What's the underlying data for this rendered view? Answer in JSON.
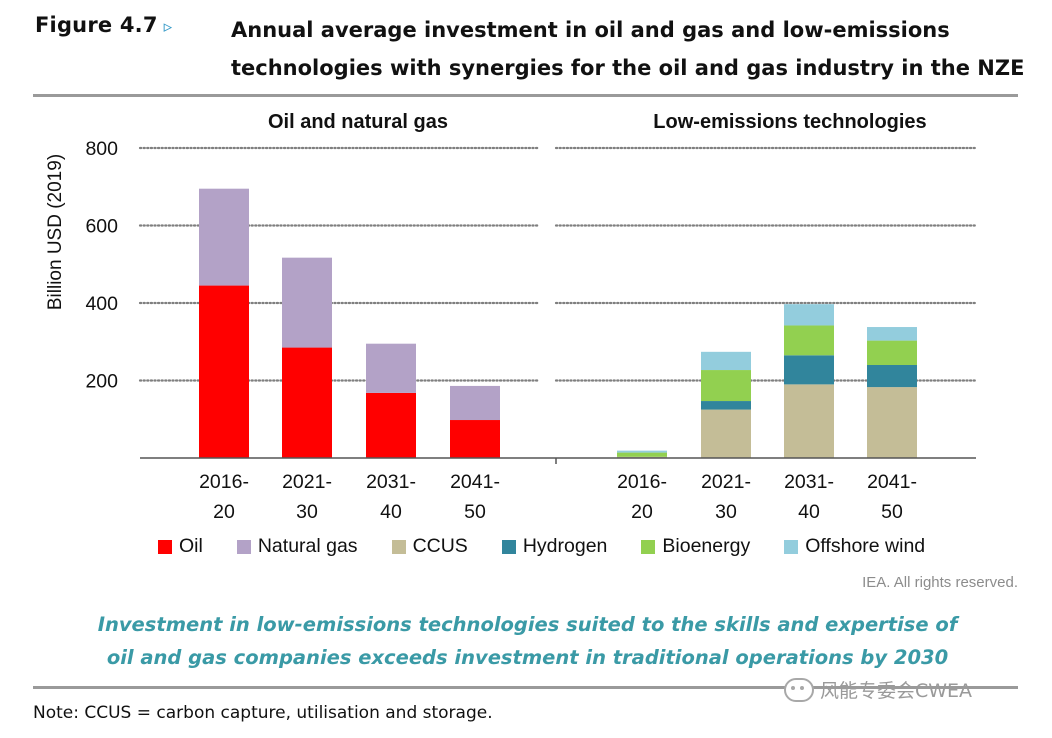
{
  "figure": {
    "label": "Figure 4.7",
    "arrow": "▹",
    "title_line1": "Annual average investment in oil and gas and low-emissions",
    "title_line2": "technologies with synergies for the oil and gas industry in the NZE"
  },
  "chart_data": [
    {
      "type": "bar",
      "stacked": true,
      "title": "Oil and natural gas",
      "ylabel": "Billion USD (2019)",
      "ylim": [
        0,
        800
      ],
      "yticks": [
        200,
        400,
        600,
        800
      ],
      "grid": true,
      "categories": [
        [
          "2016-",
          "20"
        ],
        [
          "2021-",
          "30"
        ],
        [
          "2031-",
          "40"
        ],
        [
          "2041-",
          "50"
        ]
      ],
      "series": [
        {
          "name": "Oil",
          "color": "#ff0000",
          "values": [
            445,
            285,
            168,
            98
          ]
        },
        {
          "name": "Natural gas",
          "color": "#b3a2c7",
          "values": [
            250,
            232,
            127,
            88
          ]
        }
      ]
    },
    {
      "type": "bar",
      "stacked": true,
      "title": "Low-emissions technologies",
      "ylim": [
        0,
        800
      ],
      "yticks": [
        200,
        400,
        600,
        800
      ],
      "grid": true,
      "categories": [
        [
          "2016-",
          "20"
        ],
        [
          "2021-",
          "30"
        ],
        [
          "2031-",
          "40"
        ],
        [
          "2041-",
          "50"
        ]
      ],
      "series": [
        {
          "name": "CCUS",
          "color": "#c4bd97",
          "values": [
            3,
            125,
            190,
            183
          ]
        },
        {
          "name": "Hydrogen",
          "color": "#31859c",
          "values": [
            0,
            22,
            75,
            57
          ]
        },
        {
          "name": "Bioenergy",
          "color": "#92d050",
          "values": [
            11,
            80,
            77,
            63
          ]
        },
        {
          "name": "Offshore wind",
          "color": "#93cddd",
          "values": [
            5,
            47,
            55,
            35
          ]
        }
      ]
    }
  ],
  "legend": [
    {
      "label": "Oil",
      "color": "#ff0000"
    },
    {
      "label": "Natural gas",
      "color": "#b3a2c7"
    },
    {
      "label": "CCUS",
      "color": "#c4bd97"
    },
    {
      "label": "Hydrogen",
      "color": "#31859c"
    },
    {
      "label": "Bioenergy",
      "color": "#92d050"
    },
    {
      "label": "Offshore wind",
      "color": "#93cddd"
    }
  ],
  "rights": "IEA. All rights reserved.",
  "takeaway_line1": "Investment in low-emissions technologies suited to the skills and expertise of",
  "takeaway_line2": "oil and gas companies exceeds investment in traditional operations by 2030",
  "watermark": "风能专委会CWEA",
  "note": "Note: CCUS = carbon capture, utilisation and storage."
}
